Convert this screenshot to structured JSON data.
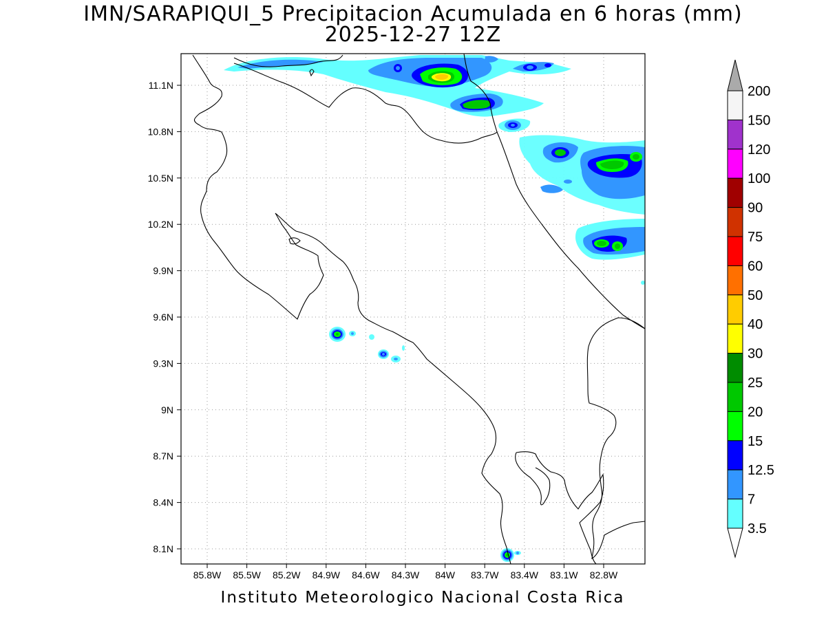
{
  "title_line1": "IMN/SARAPIQUI_5 Precipitacion Acumulada en 6 horas (mm)",
  "title_line2": "2025-12-27 12Z",
  "footer": "Instituto Meteorologico Nacional Costa Rica",
  "x_ticks": [
    "85.8W",
    "85.5W",
    "85.2W",
    "84.9W",
    "84.6W",
    "84.3W",
    "84W",
    "83.7W",
    "83.4W",
    "83.1W",
    "82.8W"
  ],
  "y_ticks": [
    "11.1N",
    "10.8N",
    "10.5N",
    "10.2N",
    "9.9N",
    "9.6N",
    "9.3N",
    "9N",
    "8.7N",
    "8.4N",
    "8.1N"
  ],
  "legend": {
    "labels": [
      "200",
      "150",
      "120",
      "100",
      "90",
      "75",
      "60",
      "50",
      "40",
      "30",
      "25",
      "20",
      "15",
      "12.5",
      "7",
      "3.5"
    ],
    "colors": [
      "#aaaaaa",
      "#f5f5f5",
      "#a032cc",
      "#ff00ff",
      "#a00000",
      "#d03200",
      "#ff0000",
      "#ff7000",
      "#ffcc00",
      "#ffff00",
      "#008c00",
      "#00c800",
      "#00ff00",
      "#0000ff",
      "#3296ff",
      "#64ffff"
    ]
  }
}
